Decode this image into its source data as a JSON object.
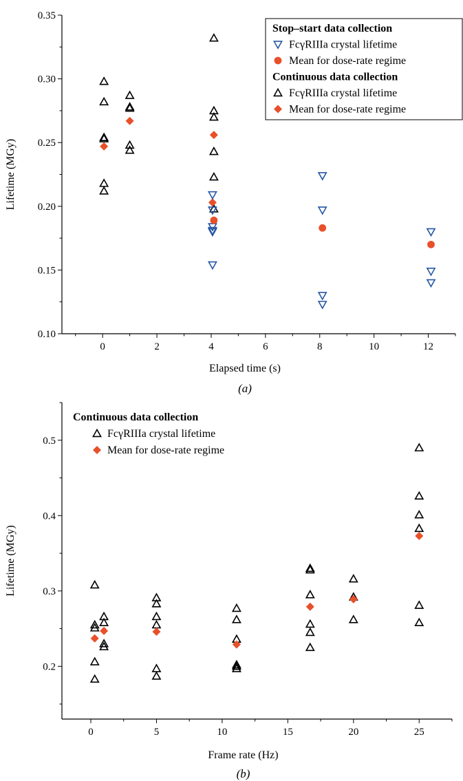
{
  "colors": {
    "black": "#000000",
    "blue": "#2456a4",
    "red": "#e8502a"
  },
  "chart_data": [
    {
      "type": "scatter",
      "panel_label": "(a)",
      "xlabel": "Elapsed time (s)",
      "ylabel": "Lifetime (MGy)",
      "xlim": [
        -1.5,
        13
      ],
      "ylim": [
        0.1,
        0.35
      ],
      "xticks": [
        0,
        2,
        4,
        6,
        8,
        10,
        12
      ],
      "xtick_labels": [
        "0",
        "2",
        "4",
        "6",
        "8",
        "10",
        "12"
      ],
      "yticks": [
        0.1,
        0.15,
        0.2,
        0.25,
        0.3,
        0.35
      ],
      "ytick_labels": [
        "0.10",
        "0.15",
        "0.20",
        "0.25",
        "0.30",
        "0.35"
      ],
      "legend_position": "top-right",
      "legend": [
        {
          "kind": "heading",
          "text": "Stop–start data collection"
        },
        {
          "kind": "entry",
          "marker": "triangle-down",
          "color": "#2456a4",
          "text": "FcγRIIIa crystal lifetime"
        },
        {
          "kind": "entry",
          "marker": "circle",
          "color": "#e8502a",
          "text": "Mean for dose-rate regime"
        },
        {
          "kind": "heading",
          "text": "Continuous data collection"
        },
        {
          "kind": "entry",
          "marker": "triangle-up",
          "color": "#000000",
          "text": "FcγRIIIa crystal lifetime"
        },
        {
          "kind": "entry",
          "marker": "diamond",
          "color": "#e8502a",
          "text": "Mean for dose-rate regime"
        }
      ],
      "series": [
        {
          "marker": "triangle-up",
          "color": "#000000",
          "x": [
            0.05,
            0.05,
            0.05,
            0.05,
            0.05,
            0.05,
            1,
            1,
            1,
            1,
            1,
            4.1,
            4.1,
            4.1,
            4.1,
            4.1,
            4.1
          ],
          "y": [
            0.298,
            0.282,
            0.254,
            0.253,
            0.218,
            0.212,
            0.287,
            0.278,
            0.277,
            0.248,
            0.244,
            0.332,
            0.275,
            0.27,
            0.243,
            0.223,
            0.198
          ]
        },
        {
          "marker": "diamond",
          "color": "#e8502a",
          "x": [
            0.05,
            1,
            4.1,
            4.05
          ],
          "y": [
            0.247,
            0.267,
            0.256,
            0.203
          ]
        },
        {
          "marker": "triangle-down",
          "color": "#2456a4",
          "x": [
            4.05,
            4.05,
            4.05,
            4.05,
            4.05,
            4.05,
            8.1,
            8.1,
            8.1,
            8.1,
            12.1,
            12.1,
            12.1
          ],
          "y": [
            0.209,
            0.197,
            0.184,
            0.181,
            0.18,
            0.154,
            0.224,
            0.197,
            0.13,
            0.123,
            0.18,
            0.149,
            0.14
          ]
        },
        {
          "marker": "circle",
          "color": "#e8502a",
          "x": [
            4.1,
            8.1,
            12.1
          ],
          "y": [
            0.189,
            0.183,
            0.17
          ]
        }
      ]
    },
    {
      "type": "scatter",
      "panel_label": "(b)",
      "xlabel": "Frame rate (Hz)",
      "ylabel": "Lifetime (MGy)",
      "xlim": [
        -2.2,
        27.5
      ],
      "ylim": [
        0.13,
        0.55
      ],
      "xticks": [
        0,
        5,
        10,
        15,
        20,
        25
      ],
      "xtick_labels": [
        "0",
        "5",
        "10",
        "15",
        "20",
        "25"
      ],
      "yticks": [
        0.2,
        0.3,
        0.4,
        0.5
      ],
      "ytick_labels": [
        "0.2",
        "0.3",
        "0.4",
        "0.5"
      ],
      "legend_position": "top-left",
      "legend": [
        {
          "kind": "heading",
          "text": "Continuous data collection"
        },
        {
          "kind": "entry",
          "marker": "triangle-up",
          "color": "#000000",
          "text": "FcγRIIIa crystal lifetime"
        },
        {
          "kind": "entry",
          "marker": "diamond",
          "color": "#e8502a",
          "text": "Mean for dose-rate regime"
        }
      ],
      "series": [
        {
          "marker": "triangle-up",
          "color": "#000000",
          "x": [
            0.3,
            0.3,
            0.3,
            0.3,
            0.3,
            1,
            1,
            1,
            1,
            5,
            5,
            5,
            5,
            5,
            5,
            11.1,
            11.1,
            11.1,
            11.1,
            11.1,
            11.1,
            16.7,
            16.7,
            16.7,
            16.7,
            16.7,
            16.7,
            20,
            20,
            20,
            25,
            25,
            25,
            25,
            25,
            25
          ],
          "y": [
            0.308,
            0.255,
            0.251,
            0.206,
            0.183,
            0.266,
            0.258,
            0.23,
            0.226,
            0.291,
            0.283,
            0.266,
            0.255,
            0.197,
            0.187,
            0.277,
            0.262,
            0.236,
            0.202,
            0.2,
            0.197,
            0.33,
            0.328,
            0.295,
            0.256,
            0.245,
            0.225,
            0.316,
            0.292,
            0.262,
            0.49,
            0.426,
            0.401,
            0.383,
            0.281,
            0.258
          ]
        },
        {
          "marker": "diamond",
          "color": "#e8502a",
          "x": [
            0.3,
            1,
            5,
            11.1,
            16.7,
            20,
            25
          ],
          "y": [
            0.237,
            0.247,
            0.246,
            0.229,
            0.279,
            0.289,
            0.373
          ]
        }
      ]
    }
  ]
}
